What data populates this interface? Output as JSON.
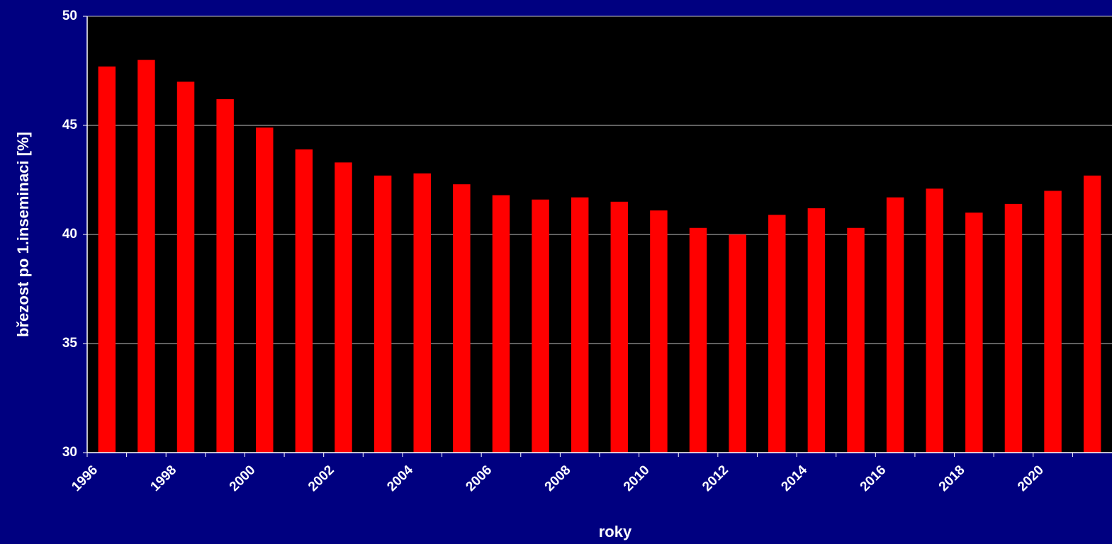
{
  "chart_data": {
    "type": "bar",
    "x_label": "roky",
    "y_label": "březost po 1.inseminaci [%]",
    "categories": [
      "1996",
      null,
      "1998",
      null,
      "2000",
      null,
      "2002",
      null,
      "2004",
      null,
      "2006",
      null,
      "2008",
      null,
      "2010",
      null,
      "2012",
      null,
      "2014",
      null,
      "2016",
      null,
      "2018",
      null,
      "2020",
      null
    ],
    "values": [
      47.7,
      48.0,
      47.0,
      46.2,
      44.9,
      43.9,
      43.3,
      42.7,
      42.8,
      42.3,
      41.8,
      41.6,
      41.7,
      41.5,
      41.1,
      40.3,
      40.0,
      40.9,
      41.2,
      40.3,
      41.7,
      42.1,
      41.0,
      41.4,
      42.0,
      42.7
    ],
    "color": "#ff0000",
    "ylim": [
      30,
      50
    ],
    "yticks": [
      30,
      35,
      40,
      45,
      50
    ],
    "grid": true
  }
}
